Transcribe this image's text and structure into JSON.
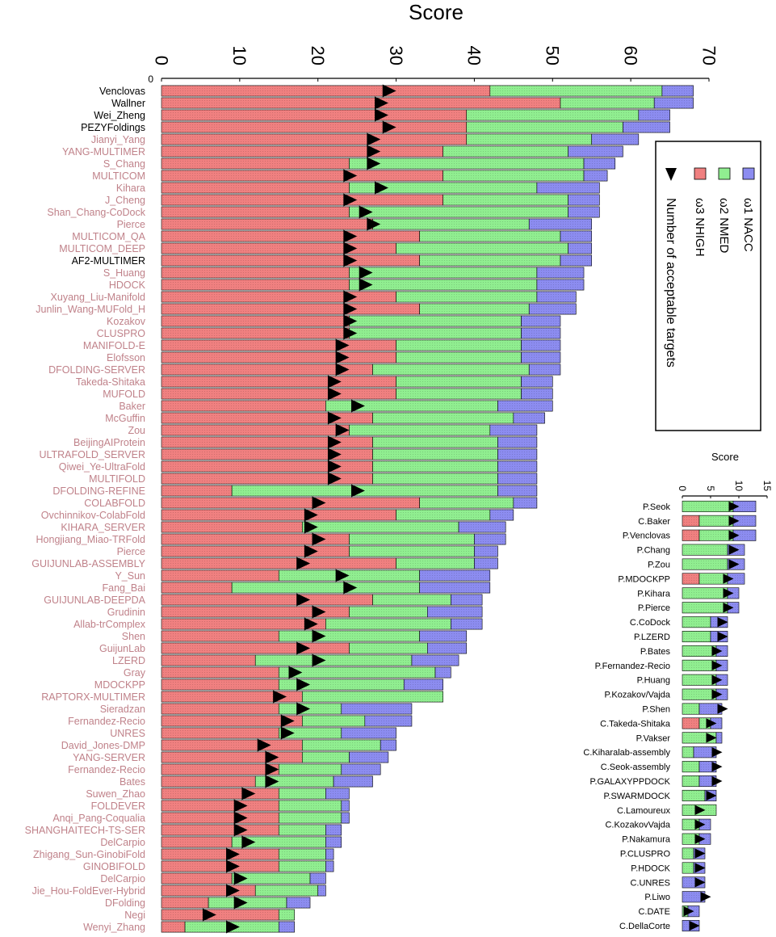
{
  "colors": {
    "red": "#f08080",
    "green": "#90ee90",
    "blue": "#8c8cf0",
    "triangle": "#000000",
    "highlight_label": "#000000",
    "label": "#c0828a"
  },
  "main": {
    "legend": {
      "acc": "ω1 NACC",
      "med": "ω2 NMED",
      "high": "ω3 NHIGH",
      "count": "Number of acceptable targets"
    }
  },
  "chart_data": [
    {
      "type": "bar",
      "orientation": "horizontal-stacked",
      "title": "Score",
      "xlim": [
        0,
        70
      ],
      "ticks": [
        0,
        10,
        20,
        30,
        40,
        50,
        60,
        70
      ],
      "legend_position": "right",
      "first_row_label": "0",
      "series": [
        {
          "name": "ω3 NHIGH",
          "color": "red"
        },
        {
          "name": "ω2 NMED",
          "color": "green"
        },
        {
          "name": "ω1 NACC",
          "color": "blue"
        },
        {
          "name": "Number of acceptable targets",
          "marker": "triangle"
        }
      ],
      "rows": [
        {
          "label": "Venclovas",
          "high": 42,
          "med": 22,
          "acc": 4,
          "count": 29,
          "highlight": true
        },
        {
          "label": "Wallner",
          "high": 51,
          "med": 12,
          "acc": 5,
          "count": 28,
          "highlight": true
        },
        {
          "label": "Wei_Zheng",
          "high": 39,
          "med": 22,
          "acc": 4,
          "count": 28,
          "highlight": true
        },
        {
          "label": "PEZYFoldings",
          "high": 39,
          "med": 20,
          "acc": 6,
          "count": 29,
          "highlight": true
        },
        {
          "label": "Jianyi_Yang",
          "high": 39,
          "med": 16,
          "acc": 6,
          "count": 27
        },
        {
          "label": "YANG-MULTIMER",
          "high": 36,
          "med": 16,
          "acc": 7,
          "count": 27
        },
        {
          "label": "S_Chang",
          "high": 24,
          "med": 30,
          "acc": 4,
          "count": 27
        },
        {
          "label": "MULTICOM",
          "high": 36,
          "med": 18,
          "acc": 3,
          "count": 24
        },
        {
          "label": "Kihara",
          "high": 24,
          "med": 24,
          "acc": 8,
          "count": 28
        },
        {
          "label": "J_Cheng",
          "high": 36,
          "med": 16,
          "acc": 4,
          "count": 24
        },
        {
          "label": "Shan_Chang-CoDock",
          "high": 24,
          "med": 28,
          "acc": 4,
          "count": 26
        },
        {
          "label": "Pierce",
          "high": 27,
          "med": 20,
          "acc": 8,
          "count": 27
        },
        {
          "label": "MULTICOM_QA",
          "high": 33,
          "med": 18,
          "acc": 4,
          "count": 24
        },
        {
          "label": "MULTICOM_DEEP",
          "high": 30,
          "med": 22,
          "acc": 3,
          "count": 24
        },
        {
          "label": "AF2-MULTIMER",
          "high": 33,
          "med": 18,
          "acc": 4,
          "count": 24,
          "highlight": true
        },
        {
          "label": "S_Huang",
          "high": 24,
          "med": 24,
          "acc": 6,
          "count": 26
        },
        {
          "label": "HDOCK",
          "high": 24,
          "med": 24,
          "acc": 6,
          "count": 26
        },
        {
          "label": "Xuyang_Liu-Manifold",
          "high": 30,
          "med": 18,
          "acc": 5,
          "count": 24
        },
        {
          "label": "Junlin_Wang-MUFold_H",
          "high": 33,
          "med": 14,
          "acc": 6,
          "count": 24
        },
        {
          "label": "Kozakov",
          "high": 24,
          "med": 22,
          "acc": 5,
          "count": 24
        },
        {
          "label": "CLUSPRO",
          "high": 24,
          "med": 22,
          "acc": 5,
          "count": 24
        },
        {
          "label": "MANIFOLD-E",
          "high": 30,
          "med": 16,
          "acc": 5,
          "count": 23
        },
        {
          "label": "Elofsson",
          "high": 30,
          "med": 16,
          "acc": 5,
          "count": 23
        },
        {
          "label": "DFOLDING-SERVER",
          "high": 27,
          "med": 20,
          "acc": 4,
          "count": 23
        },
        {
          "label": "Takeda-Shitaka",
          "high": 30,
          "med": 16,
          "acc": 4,
          "count": 22
        },
        {
          "label": "MUFOLD",
          "high": 30,
          "med": 16,
          "acc": 4,
          "count": 22
        },
        {
          "label": "Baker",
          "high": 21,
          "med": 22,
          "acc": 7,
          "count": 25
        },
        {
          "label": "McGuffin",
          "high": 27,
          "med": 18,
          "acc": 4,
          "count": 22
        },
        {
          "label": "Zou",
          "high": 24,
          "med": 18,
          "acc": 6,
          "count": 23
        },
        {
          "label": "BeijingAIProtein",
          "high": 27,
          "med": 16,
          "acc": 5,
          "count": 22
        },
        {
          "label": "ULTRAFOLD_SERVER",
          "high": 27,
          "med": 16,
          "acc": 5,
          "count": 22
        },
        {
          "label": "Qiwei_Ye-UltraFold",
          "high": 27,
          "med": 16,
          "acc": 5,
          "count": 22
        },
        {
          "label": "MULTIFOLD",
          "high": 27,
          "med": 16,
          "acc": 5,
          "count": 22
        },
        {
          "label": "DFOLDING-REFINE",
          "high": 9,
          "med": 34,
          "acc": 5,
          "count": 25
        },
        {
          "label": "COLABFOLD",
          "high": 33,
          "med": 12,
          "acc": 3,
          "count": 20
        },
        {
          "label": "Ovchinnikov-ColabFold",
          "high": 30,
          "med": 12,
          "acc": 3,
          "count": 19
        },
        {
          "label": "KIHARA_SERVER",
          "high": 18,
          "med": 20,
          "acc": 6,
          "count": 19
        },
        {
          "label": "Hongjiang_Miao-TRFold",
          "high": 24,
          "med": 16,
          "acc": 4,
          "count": 20
        },
        {
          "label": "Pierce",
          "high": 24,
          "med": 16,
          "acc": 3,
          "count": 19
        },
        {
          "label": "GUIJUNLAB-ASSEMBLY",
          "high": 30,
          "med": 10,
          "acc": 3,
          "count": 18
        },
        {
          "label": "Y_Sun",
          "high": 15,
          "med": 18,
          "acc": 9,
          "count": 23
        },
        {
          "label": "Fang_Bai",
          "high": 9,
          "med": 24,
          "acc": 9,
          "count": 24
        },
        {
          "label": "GUIJUNLAB-DEEPDA",
          "high": 27,
          "med": 10,
          "acc": 4,
          "count": 18
        },
        {
          "label": "Grudinin",
          "high": 24,
          "med": 10,
          "acc": 7,
          "count": 20
        },
        {
          "label": "Allab-trComplex",
          "high": 21,
          "med": 16,
          "acc": 4,
          "count": 19
        },
        {
          "label": "Shen",
          "high": 15,
          "med": 18,
          "acc": 6,
          "count": 20
        },
        {
          "label": "GuijunLab",
          "high": 24,
          "med": 10,
          "acc": 5,
          "count": 18
        },
        {
          "label": "LZERD",
          "high": 12,
          "med": 20,
          "acc": 6,
          "count": 20
        },
        {
          "label": "Gray",
          "high": 15,
          "med": 20,
          "acc": 2,
          "count": 17
        },
        {
          "label": "MDOCKPP",
          "high": 15,
          "med": 16,
          "acc": 5,
          "count": 18
        },
        {
          "label": "RAPTORX-MULTIMER",
          "high": 18,
          "med": 18,
          "acc": 0,
          "count": 15
        },
        {
          "label": "Sieradzan",
          "high": 15,
          "med": 8,
          "acc": 9,
          "count": 18
        },
        {
          "label": "Fernandez-Recio",
          "high": 18,
          "med": 8,
          "acc": 6,
          "count": 16
        },
        {
          "label": "UNRES",
          "high": 15,
          "med": 8,
          "acc": 7,
          "count": 16
        },
        {
          "label": "David_Jones-DMP",
          "high": 18,
          "med": 10,
          "acc": 2,
          "count": 13
        },
        {
          "label": "YANG-SERVER",
          "high": 18,
          "med": 6,
          "acc": 5,
          "count": 14
        },
        {
          "label": "Fernandez-Recio",
          "high": 15,
          "med": 8,
          "acc": 5,
          "count": 14
        },
        {
          "label": "Bates",
          "high": 12,
          "med": 10,
          "acc": 5,
          "count": 14
        },
        {
          "label": "Suwen_Zhao",
          "high": 15,
          "med": 6,
          "acc": 3,
          "count": 11
        },
        {
          "label": "FOLDEVER",
          "high": 15,
          "med": 8,
          "acc": 1,
          "count": 10
        },
        {
          "label": "Anqi_Pang-Coqualia",
          "high": 15,
          "med": 8,
          "acc": 1,
          "count": 10
        },
        {
          "label": "SHANGHAITECH-TS-SER",
          "high": 15,
          "med": 6,
          "acc": 2,
          "count": 10
        },
        {
          "label": "DelCarpio",
          "high": 9,
          "med": 12,
          "acc": 2,
          "count": 11
        },
        {
          "label": "Zhigang_Sun-GinobiFold",
          "high": 15,
          "med": 6,
          "acc": 1,
          "count": 9
        },
        {
          "label": "GINOBIFOLD",
          "high": 15,
          "med": 6,
          "acc": 1,
          "count": 9
        },
        {
          "label": "DelCarpio",
          "high": 9,
          "med": 10,
          "acc": 2,
          "count": 10
        },
        {
          "label": "Jie_Hou-FoldEver-Hybrid",
          "high": 12,
          "med": 8,
          "acc": 1,
          "count": 9
        },
        {
          "label": "DFolding",
          "high": 6,
          "med": 10,
          "acc": 3,
          "count": 10
        },
        {
          "label": "Negi",
          "high": 15,
          "med": 2,
          "acc": 0,
          "count": 6
        },
        {
          "label": "Wenyi_Zhang",
          "high": 3,
          "med": 12,
          "acc": 2,
          "count": 9
        }
      ]
    },
    {
      "type": "bar",
      "orientation": "horizontal-stacked",
      "title": "Score",
      "xlim": [
        0,
        15
      ],
      "ticks": [
        0,
        5,
        10,
        15
      ],
      "rows": [
        {
          "label": "P.Seok",
          "high": 0,
          "med": 9,
          "acc": 4,
          "count": 9
        },
        {
          "label": "C.Baker",
          "high": 3,
          "med": 6,
          "acc": 4,
          "count": 9
        },
        {
          "label": "P.Venclovas",
          "high": 3,
          "med": 6,
          "acc": 4,
          "count": 9
        },
        {
          "label": "P.Chang",
          "high": 0,
          "med": 8,
          "acc": 3,
          "count": 9
        },
        {
          "label": "P.Zou",
          "high": 0,
          "med": 8,
          "acc": 3,
          "count": 9
        },
        {
          "label": "P.MDOCKPP",
          "high": 3,
          "med": 5,
          "acc": 3,
          "count": 8
        },
        {
          "label": "P.Kihara",
          "high": 0,
          "med": 8,
          "acc": 2,
          "count": 8
        },
        {
          "label": "P.Pierce",
          "high": 0,
          "med": 8,
          "acc": 2,
          "count": 8
        },
        {
          "label": "C.CoDock",
          "high": 0,
          "med": 5,
          "acc": 3,
          "count": 7
        },
        {
          "label": "P.LZERD",
          "high": 0,
          "med": 5,
          "acc": 3,
          "count": 7
        },
        {
          "label": "P.Bates",
          "high": 0,
          "med": 6,
          "acc": 2,
          "count": 6
        },
        {
          "label": "P.Fernandez-Recio",
          "high": 0,
          "med": 6,
          "acc": 2,
          "count": 6
        },
        {
          "label": "P.Huang",
          "high": 0,
          "med": 6,
          "acc": 2,
          "count": 6
        },
        {
          "label": "P.Kozakov/Vajda",
          "high": 0,
          "med": 6,
          "acc": 2,
          "count": 6
        },
        {
          "label": "P.Shen",
          "high": 0,
          "med": 3,
          "acc": 4,
          "count": 7
        },
        {
          "label": "C.Takeda-Shitaka",
          "high": 3,
          "med": 2,
          "acc": 2,
          "count": 5
        },
        {
          "label": "P.Vakser",
          "high": 0,
          "med": 6,
          "acc": 1,
          "count": 5
        },
        {
          "label": "C.Kiharalab-assembly",
          "high": 0,
          "med": 2,
          "acc": 4,
          "count": 6
        },
        {
          "label": "C.Seok-assembly",
          "high": 0,
          "med": 3,
          "acc": 3,
          "count": 6
        },
        {
          "label": "P.GALAXYPPDOCK",
          "high": 0,
          "med": 3,
          "acc": 3,
          "count": 6
        },
        {
          "label": "P.SWARMDOCK",
          "high": 0,
          "med": 4,
          "acc": 2,
          "count": 5
        },
        {
          "label": "C.Lamoureux",
          "high": 0,
          "med": 6,
          "acc": 0,
          "count": 3
        },
        {
          "label": "C.KozakovVajda",
          "high": 0,
          "med": 3,
          "acc": 2,
          "count": 3
        },
        {
          "label": "P.Nakamura",
          "high": 0,
          "med": 3,
          "acc": 2,
          "count": 3
        },
        {
          "label": "P.CLUSPRO",
          "high": 0,
          "med": 2,
          "acc": 2,
          "count": 3
        },
        {
          "label": "P.HDOCK",
          "high": 0,
          "med": 2,
          "acc": 2,
          "count": 3
        },
        {
          "label": "C.UNRES",
          "high": 0,
          "med": 0,
          "acc": 4,
          "count": 3
        },
        {
          "label": "P.Liwo",
          "high": 0,
          "med": 0,
          "acc": 4,
          "count": 4
        },
        {
          "label": "C.DATE",
          "high": 0,
          "med": 1,
          "acc": 2,
          "count": 1
        },
        {
          "label": "C.DellaCorte",
          "high": 0,
          "med": 0,
          "acc": 3,
          "count": 2
        }
      ]
    }
  ]
}
